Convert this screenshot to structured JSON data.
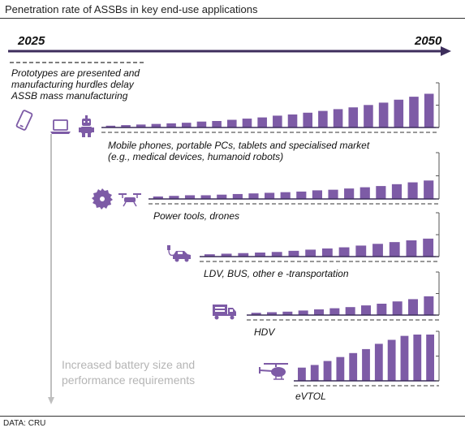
{
  "title": "Penetration rate of ASSBs in key end-use applications",
  "source": "DATA: CRU",
  "timeline": {
    "start_label": "2025",
    "end_label": "2050"
  },
  "prototype_note": "Prototypes are presented and manufacturing hurdles delay ASSB mass manufacturing",
  "growth_note": "Increased battery size and performance requirements",
  "colors": {
    "bar": "#7d5ba6",
    "axis": "#3d2e5c",
    "icon": "#7d5ba6",
    "arrow": "#bfbfbf"
  },
  "chart_data": [
    {
      "type": "bar",
      "label": "Mobile phones, portable PCs, tablets and specialised market (e.g., medical devices, humanoid robots)",
      "icons": [
        "phone-icon",
        "laptop-icon",
        "robot-icon"
      ],
      "values": [
        1.5,
        2,
        2.5,
        3,
        3.5,
        4,
        5,
        5.5,
        6.5,
        7.5,
        8.5,
        10,
        11,
        12.5,
        14,
        15.5,
        17,
        19,
        21,
        23.5,
        26,
        28.5
      ]
    },
    {
      "type": "bar",
      "label": "Power tools, drones",
      "icons": [
        "saw-blade-icon",
        "drone-icon"
      ],
      "values": [
        2,
        2.5,
        3,
        3,
        3.5,
        4,
        4.5,
        5,
        5.5,
        6,
        7,
        7.5,
        8.5,
        9.5,
        10.5,
        12,
        13.5,
        15
      ]
    },
    {
      "type": "bar",
      "label": "LDV, BUS, other e -transportation",
      "icons": [
        "car-charging-icon"
      ],
      "values": [
        2,
        2.5,
        3,
        3.5,
        4,
        5,
        6,
        7,
        8,
        9.5,
        11,
        12.5,
        14,
        15.5
      ]
    },
    {
      "type": "bar",
      "label": "HDV",
      "icons": [
        "truck-icon"
      ],
      "values": [
        2,
        2.5,
        3,
        4,
        5,
        6,
        7,
        8.5,
        10,
        12,
        14,
        16.5
      ]
    },
    {
      "type": "bar",
      "label": "eVTOL",
      "icons": [
        "helicopter-icon"
      ],
      "values": [
        10,
        12,
        15,
        18,
        21,
        24,
        28,
        31,
        34,
        35,
        35
      ]
    }
  ]
}
